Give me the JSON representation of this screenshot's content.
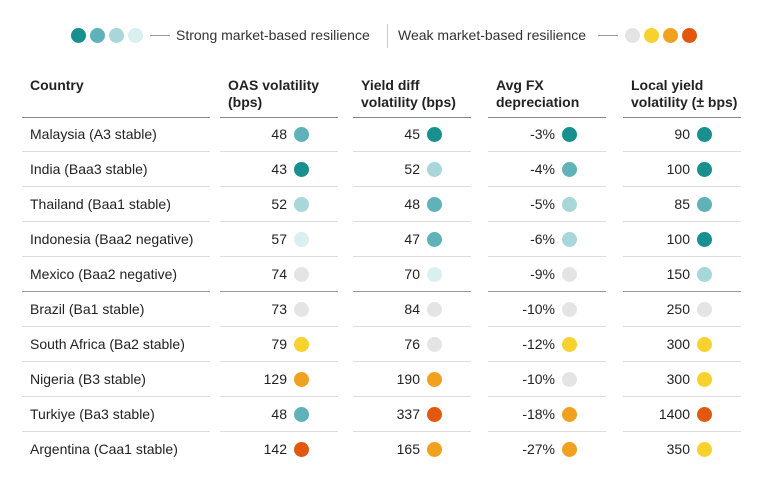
{
  "legend": {
    "strong_colors": [
      "#17908f",
      "#5fb3b8",
      "#a7d7d9",
      "#d9eff0"
    ],
    "strong_label": "Strong market-based resilience",
    "weak_label": "Weak market-based resilience",
    "weak_colors": [
      "#e4e4e4",
      "#f7d22c",
      "#f0a11f",
      "#e2580f"
    ]
  },
  "table": {
    "header": [
      "Country",
      "OAS volatility (bps)",
      "Yield diff volatility (bps)",
      "Avg FX depreciation",
      "Local yield volatility (± bps)"
    ],
    "rows": [
      {
        "country": "Malaysia (A3 stable)",
        "cells": [
          {
            "text": "48",
            "color": "#5fb3b8"
          },
          {
            "text": "45",
            "color": "#17908f"
          },
          {
            "text": "-3%",
            "color": "#17908f"
          },
          {
            "text": "90",
            "color": "#17908f"
          }
        ]
      },
      {
        "country": "India (Baa3 stable)",
        "cells": [
          {
            "text": "43",
            "color": "#17908f"
          },
          {
            "text": "52",
            "color": "#a7d7d9"
          },
          {
            "text": "-4%",
            "color": "#5fb3b8"
          },
          {
            "text": "100",
            "color": "#17908f"
          }
        ]
      },
      {
        "country": "Thailand (Baa1 stable)",
        "cells": [
          {
            "text": "52",
            "color": "#a7d7d9"
          },
          {
            "text": "48",
            "color": "#5fb3b8"
          },
          {
            "text": "-5%",
            "color": "#a7d7d9"
          },
          {
            "text": "85",
            "color": "#5fb3b8"
          }
        ]
      },
      {
        "country": "Indonesia (Baa2 negative)",
        "cells": [
          {
            "text": "57",
            "color": "#d9eff0"
          },
          {
            "text": "47",
            "color": "#5fb3b8"
          },
          {
            "text": "-6%",
            "color": "#a7d7d9"
          },
          {
            "text": "100",
            "color": "#17908f"
          }
        ]
      },
      {
        "country": "Mexico (Baa2 negative)",
        "cells": [
          {
            "text": "74",
            "color": "#e4e4e4"
          },
          {
            "text": "70",
            "color": "#d9eff0"
          },
          {
            "text": "-9%",
            "color": "#e4e4e4"
          },
          {
            "text": "150",
            "color": "#a7d7d9"
          }
        ]
      },
      {
        "country": "Brazil (Ba1 stable)",
        "cells": [
          {
            "text": "73",
            "color": "#e4e4e4"
          },
          {
            "text": "84",
            "color": "#e4e4e4"
          },
          {
            "text": "-10%",
            "color": "#e4e4e4"
          },
          {
            "text": "250",
            "color": "#e4e4e4"
          }
        ]
      },
      {
        "country": "South Africa (Ba2 stable)",
        "cells": [
          {
            "text": "79",
            "color": "#f7d22c"
          },
          {
            "text": "76",
            "color": "#e4e4e4"
          },
          {
            "text": "-12%",
            "color": "#f7d22c"
          },
          {
            "text": "300",
            "color": "#f7d22c"
          }
        ]
      },
      {
        "country": "Nigeria (B3 stable)",
        "cells": [
          {
            "text": "129",
            "color": "#f0a11f"
          },
          {
            "text": "190",
            "color": "#f0a11f"
          },
          {
            "text": "-10%",
            "color": "#e4e4e4"
          },
          {
            "text": "300",
            "color": "#f7d22c"
          }
        ]
      },
      {
        "country": "Turkiye (Ba3 stable)",
        "cells": [
          {
            "text": "48",
            "color": "#5fb3b8"
          },
          {
            "text": "337",
            "color": "#e2580f"
          },
          {
            "text": "-18%",
            "color": "#f0a11f"
          },
          {
            "text": "1400",
            "color": "#e2580f"
          }
        ]
      },
      {
        "country": "Argentina (Caa1 stable)",
        "cells": [
          {
            "text": "142",
            "color": "#e2580f"
          },
          {
            "text": "165",
            "color": "#f0a11f"
          },
          {
            "text": "-27%",
            "color": "#f0a11f"
          },
          {
            "text": "350",
            "color": "#f7d22c"
          }
        ]
      }
    ]
  }
}
